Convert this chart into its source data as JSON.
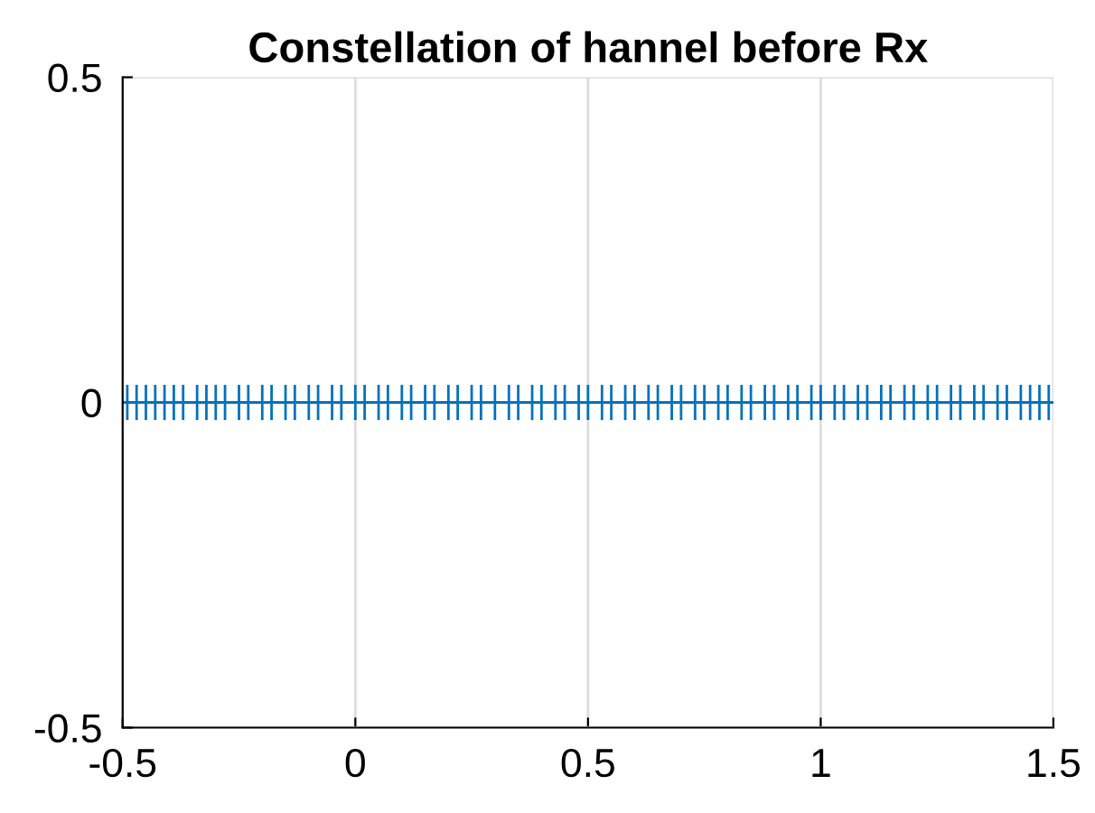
{
  "chart_data": {
    "type": "scatter",
    "title": "Constellation of hannel before Rx",
    "x": [
      -0.49,
      -0.47,
      -0.45,
      -0.43,
      -0.41,
      -0.39,
      -0.37,
      -0.34,
      -0.32,
      -0.3,
      -0.28,
      -0.25,
      -0.23,
      -0.2,
      -0.18,
      -0.15,
      -0.13,
      -0.1,
      -0.08,
      -0.05,
      -0.03,
      0.0,
      0.02,
      0.05,
      0.07,
      0.1,
      0.12,
      0.15,
      0.17,
      0.2,
      0.22,
      0.25,
      0.27,
      0.3,
      0.33,
      0.35,
      0.38,
      0.4,
      0.43,
      0.45,
      0.48,
      0.5,
      0.53,
      0.55,
      0.58,
      0.6,
      0.63,
      0.65,
      0.68,
      0.7,
      0.73,
      0.75,
      0.78,
      0.8,
      0.83,
      0.85,
      0.88,
      0.9,
      0.93,
      0.95,
      0.98,
      1.0,
      1.03,
      1.05,
      1.08,
      1.1,
      1.13,
      1.15,
      1.18,
      1.2,
      1.23,
      1.25,
      1.28,
      1.3,
      1.33,
      1.35,
      1.38,
      1.4,
      1.43,
      1.45,
      1.47,
      1.49
    ],
    "values": [
      0,
      0,
      0,
      0,
      0,
      0,
      0,
      0,
      0,
      0,
      0,
      0,
      0,
      0,
      0,
      0,
      0,
      0,
      0,
      0,
      0,
      0,
      0,
      0,
      0,
      0,
      0,
      0,
      0,
      0,
      0,
      0,
      0,
      0,
      0,
      0,
      0,
      0,
      0,
      0,
      0,
      0,
      0,
      0,
      0,
      0,
      0,
      0,
      0,
      0,
      0,
      0,
      0,
      0,
      0,
      0,
      0,
      0,
      0,
      0,
      0,
      0,
      0,
      0,
      0,
      0,
      0,
      0,
      0,
      0,
      0,
      0,
      0,
      0,
      0,
      0,
      0,
      0,
      0,
      0,
      0,
      0
    ],
    "color": "#0072bd",
    "marker": "cross",
    "xlim": [
      -0.5,
      1.5
    ],
    "xticks": [
      -0.5,
      0,
      0.5,
      1,
      1.5
    ],
    "ylim": [
      -0.5,
      0.5
    ],
    "yticks": [
      -0.5,
      0,
      0.5
    ],
    "grid": true
  }
}
